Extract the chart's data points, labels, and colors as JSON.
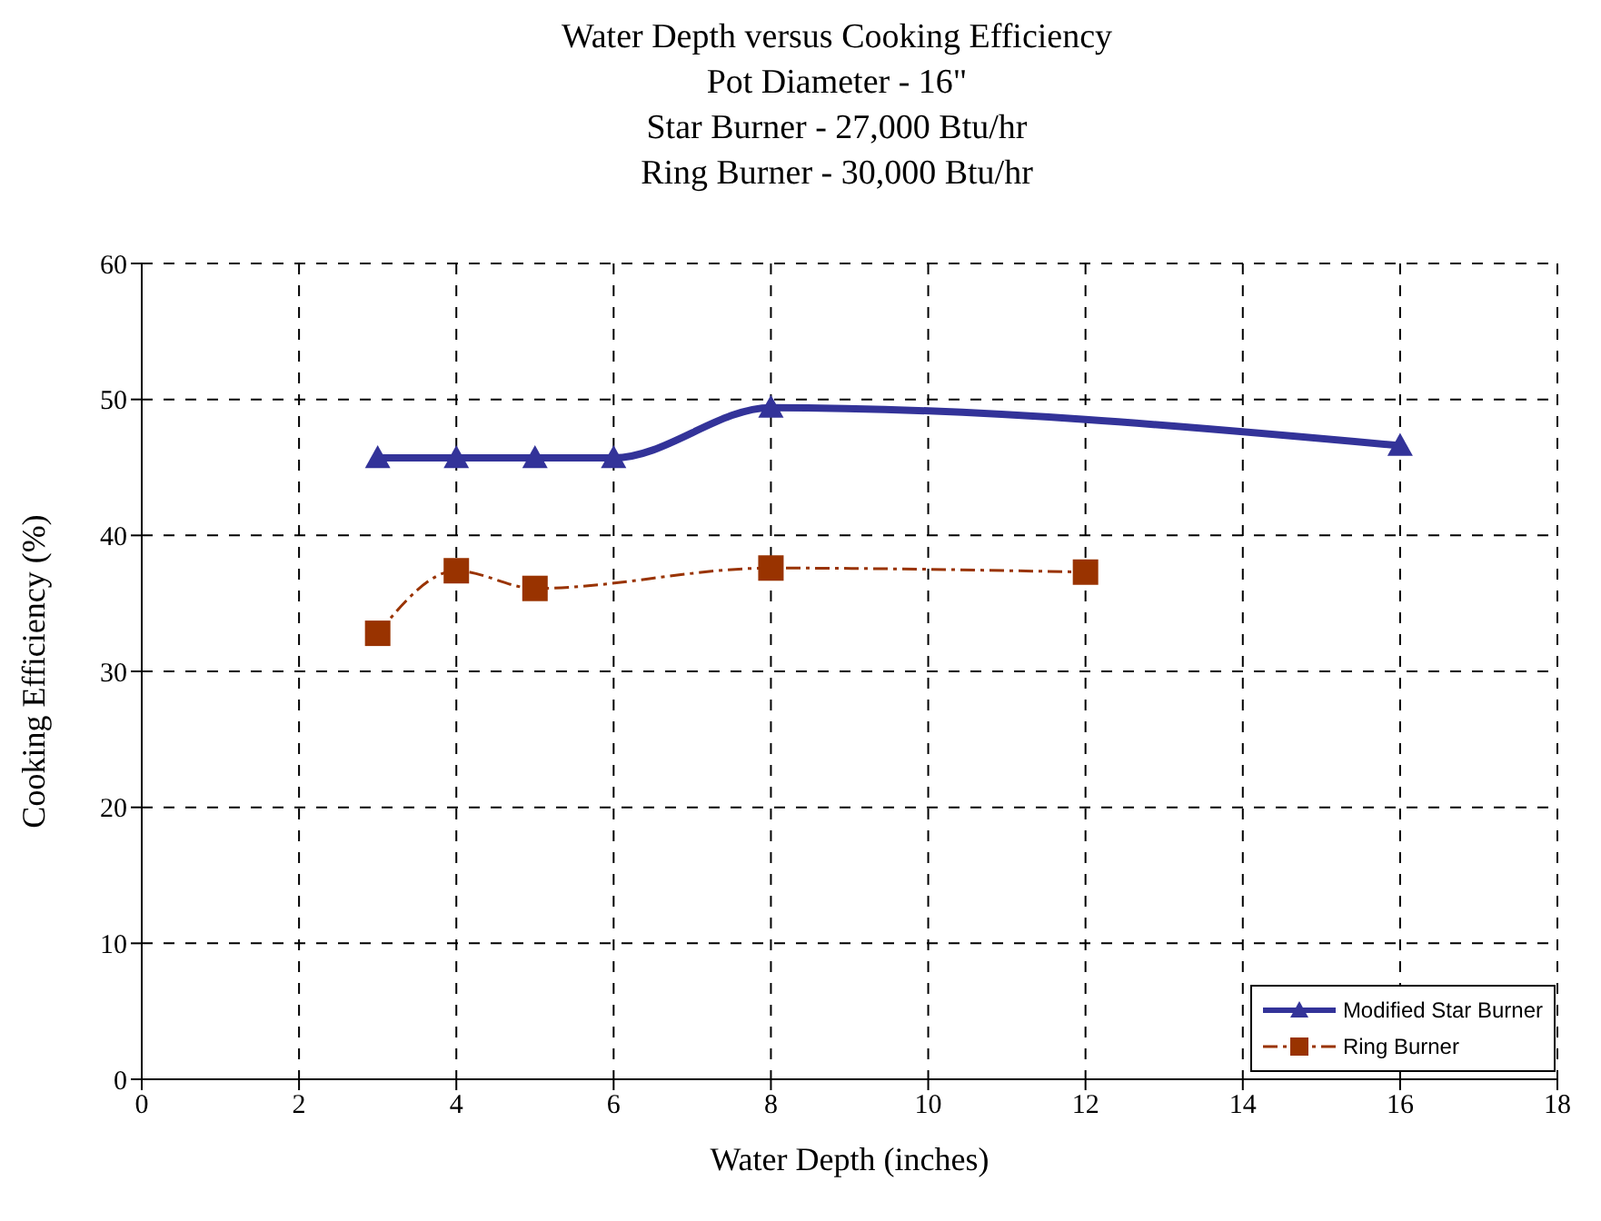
{
  "chart_data": {
    "type": "line",
    "title": "Water Depth versus Cooking Efficiency",
    "subtitle": "Pot Diameter - 16\"\nStar Burner - 27,000 Btu/hr\nRing Burner - 30,000 Btu/hr",
    "xlabel": "Water Depth (inches)",
    "ylabel": "Cooking Efficiency (%)",
    "series": [
      {
        "name": "Modified Star Burner",
        "color": "#333399",
        "x": [
          3,
          4,
          5,
          6,
          8,
          16
        ],
        "values": [
          45.7,
          45.7,
          45.7,
          45.7,
          49.4,
          46.6
        ],
        "marker": "triangle",
        "line_style": "solid"
      },
      {
        "name": "Ring Burner",
        "color": "#993300",
        "x": [
          3,
          4,
          5,
          8,
          12
        ],
        "values": [
          32.8,
          37.4,
          36.1,
          37.6,
          37.3
        ],
        "marker": "square",
        "line_style": "dashed"
      }
    ],
    "xlim": [
      0,
      18
    ],
    "xticks": [
      0,
      2,
      4,
      6,
      8,
      10,
      12,
      14,
      16,
      18
    ],
    "ylim": [
      0,
      60
    ],
    "yticks": [
      0,
      10,
      20,
      30,
      40,
      50,
      60
    ],
    "grid": true,
    "legend": "bottom right"
  }
}
